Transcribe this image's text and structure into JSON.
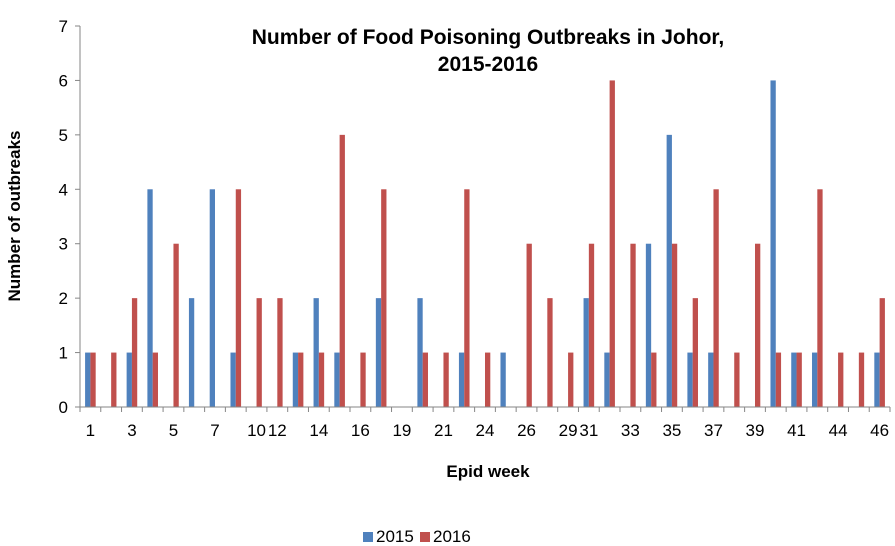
{
  "chart_data": {
    "type": "bar",
    "title_line1": "Number of Food Poisoning Outbreaks in Johor,",
    "title_line2": "2015-2016",
    "xlabel": "Epid week",
    "ylabel": "Number of outbreaks",
    "ylim": [
      0,
      7
    ],
    "yticks": [
      "0",
      "1",
      "2",
      "3",
      "4",
      "5",
      "6",
      "7"
    ],
    "categories": [
      "1",
      "2",
      "3",
      "4",
      "5",
      "6",
      "7",
      "9",
      "10",
      "12",
      "13",
      "14",
      "15",
      "16",
      "17",
      "19",
      "20",
      "21",
      "23",
      "24",
      "25",
      "26",
      "28",
      "29",
      "31",
      "32",
      "33",
      "34",
      "35",
      "36",
      "37",
      "38",
      "39",
      "40",
      "41",
      "42",
      "44",
      "45",
      "46"
    ],
    "x_tick_labels": [
      "1",
      "3",
      "5",
      "7",
      "10",
      "12",
      "14",
      "16",
      "19",
      "21",
      "24",
      "26",
      "29",
      "31",
      "33",
      "35",
      "37",
      "39",
      "41",
      "44",
      "46"
    ],
    "series": [
      {
        "name": "2015",
        "color": "#4F81BD",
        "values": [
          1,
          0,
          1,
          4,
          0,
          2,
          4,
          1,
          0,
          0,
          1,
          2,
          1,
          0,
          2,
          0,
          2,
          0,
          1,
          0,
          1,
          0,
          0,
          0,
          2,
          1,
          0,
          3,
          5,
          1,
          1,
          0,
          0,
          6,
          1,
          1,
          0,
          0,
          1
        ]
      },
      {
        "name": "2016",
        "color": "#C0504D",
        "values": [
          1,
          1,
          2,
          1,
          3,
          0,
          0,
          4,
          2,
          2,
          1,
          1,
          5,
          1,
          4,
          0,
          1,
          1,
          4,
          1,
          0,
          3,
          2,
          1,
          3,
          6,
          3,
          1,
          3,
          2,
          4,
          1,
          3,
          1,
          1,
          4,
          1,
          1,
          2
        ]
      }
    ],
    "legend_position": "bottom",
    "grid": false
  }
}
